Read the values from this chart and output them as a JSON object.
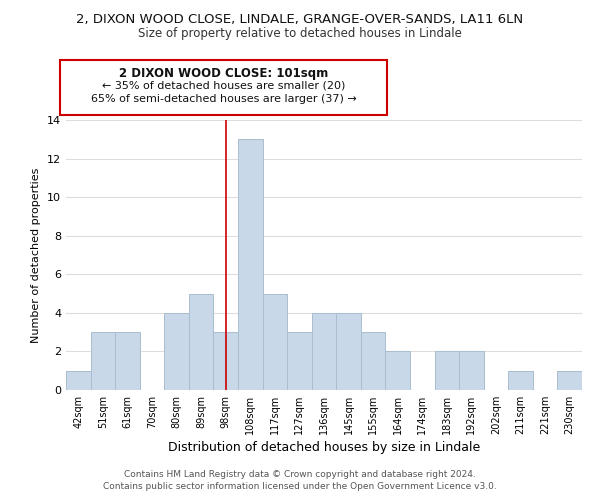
{
  "title": "2, DIXON WOOD CLOSE, LINDALE, GRANGE-OVER-SANDS, LA11 6LN",
  "subtitle": "Size of property relative to detached houses in Lindale",
  "xlabel": "Distribution of detached houses by size in Lindale",
  "ylabel": "Number of detached properties",
  "bar_labels": [
    "42sqm",
    "51sqm",
    "61sqm",
    "70sqm",
    "80sqm",
    "89sqm",
    "98sqm",
    "108sqm",
    "117sqm",
    "127sqm",
    "136sqm",
    "145sqm",
    "155sqm",
    "164sqm",
    "174sqm",
    "183sqm",
    "192sqm",
    "202sqm",
    "211sqm",
    "221sqm",
    "230sqm"
  ],
  "bar_values": [
    1,
    3,
    3,
    0,
    4,
    5,
    3,
    13,
    5,
    3,
    4,
    4,
    3,
    2,
    0,
    2,
    2,
    0,
    1,
    0,
    1
  ],
  "bar_color": "#c8d8e8",
  "bar_edge_color": "#a8bece",
  "vline_x_index": 6,
  "vline_color": "#cc0000",
  "ylim": [
    0,
    14
  ],
  "yticks": [
    0,
    2,
    4,
    6,
    8,
    10,
    12,
    14
  ],
  "annotation_title": "2 DIXON WOOD CLOSE: 101sqm",
  "annotation_line1": "← 35% of detached houses are smaller (20)",
  "annotation_line2": "65% of semi-detached houses are larger (37) →",
  "annotation_box_color": "#ffffff",
  "annotation_box_edge": "#cc0000",
  "footer1": "Contains HM Land Registry data © Crown copyright and database right 2024.",
  "footer2": "Contains public sector information licensed under the Open Government Licence v3.0.",
  "grid_color": "#dddddd",
  "background_color": "#ffffff",
  "title_fontsize": 9.5,
  "subtitle_fontsize": 8.5
}
